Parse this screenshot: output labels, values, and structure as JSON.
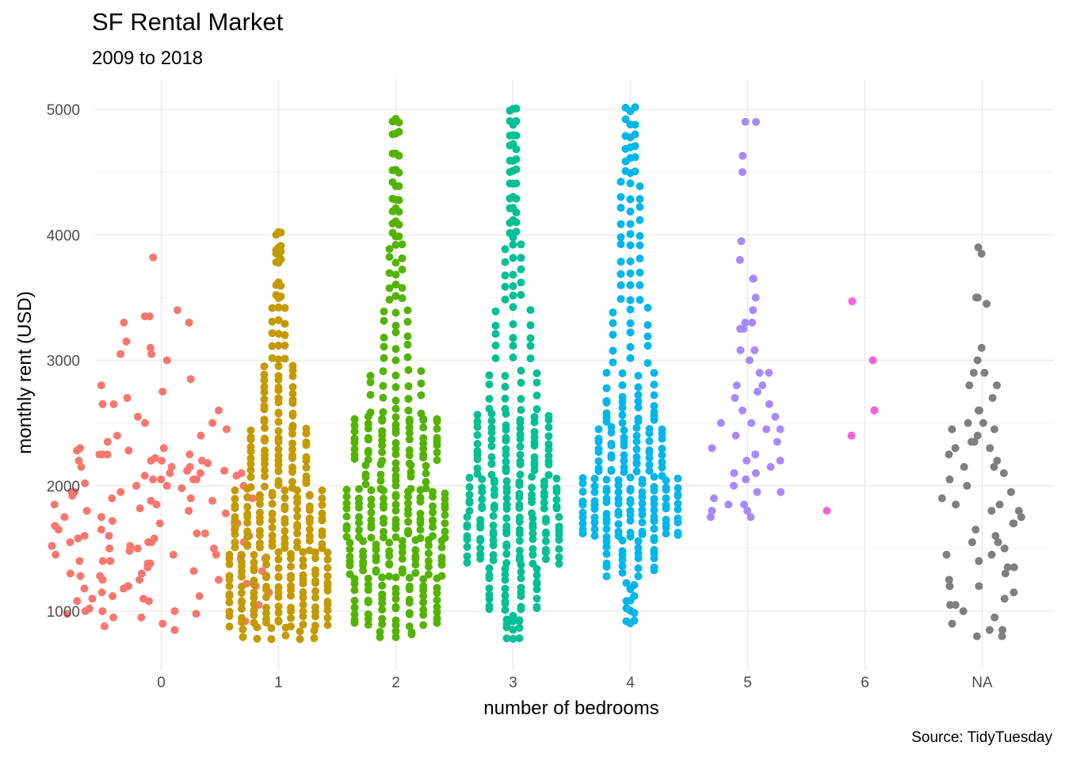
{
  "chart_data": {
    "type": "scatter",
    "subtype": "beeswarm",
    "title": "SF Rental Market",
    "subtitle": "2009 to 2018",
    "caption": "Source: TidyTuesday",
    "xlabel": "number of bedrooms",
    "ylabel": "monthly rent (USD)",
    "categories": [
      "0",
      "1",
      "2",
      "3",
      "4",
      "5",
      "6",
      "NA"
    ],
    "ylim": [
      630,
      5080
    ],
    "yticks": [
      1000,
      2000,
      3000,
      4000,
      5000
    ],
    "grid": true,
    "legend": "none",
    "colors": [
      "#F8766D",
      "#C49A00",
      "#53B400",
      "#00C094",
      "#00B6EB",
      "#A58AFF",
      "#FB61D7",
      "#7F7F7F"
    ],
    "series": [
      {
        "values": [
          850,
          880,
          900,
          920,
          950,
          980,
          1000,
          1000,
          1020,
          1050,
          1080,
          1100,
          1120,
          1150,
          1150,
          1180,
          1200,
          1200,
          1220,
          1250,
          1250,
          1280,
          1300,
          1300,
          1320,
          1350,
          1350,
          1380,
          1400,
          1400,
          1420,
          1450,
          1450,
          1480,
          1500,
          1500,
          1520,
          1550,
          1550,
          1580,
          1600,
          1600,
          1620,
          1650,
          1650,
          1680,
          1700,
          1700,
          1720,
          1750,
          1750,
          1780,
          1800,
          1800,
          1820,
          1850,
          1850,
          1880,
          1900,
          1900,
          1920,
          1950,
          1950,
          1980,
          2000,
          2000,
          2020,
          2050,
          2050,
          2080,
          2100,
          2100,
          2120,
          2150,
          2150,
          2180,
          2200,
          2200,
          2220,
          2250,
          2250,
          2280,
          2300,
          2350,
          2400,
          2450,
          2500,
          2550,
          2600,
          2650,
          2700,
          2750,
          2800,
          2850,
          3000,
          3050,
          3100,
          3150,
          3300,
          3350,
          3400,
          3820
        ]
      },
      {
        "values": [
          800,
          850,
          900,
          950,
          1000,
          1050,
          1100,
          1150,
          1200,
          1250,
          1300,
          1350,
          1400,
          1450,
          1500,
          1550,
          1600,
          1650,
          1700,
          1750,
          1800,
          1850,
          1900,
          1950,
          2000,
          2050,
          2100,
          2150,
          2200,
          2250,
          2300,
          2350,
          2400,
          2450,
          2500,
          2550,
          2600,
          2650,
          2700,
          2750,
          2800,
          2850,
          2900,
          2950,
          3000,
          3100,
          3200,
          3300,
          3400,
          3500,
          3600,
          3800,
          3850,
          3900,
          4000
        ]
      },
      {
        "values": [
          800,
          850,
          900,
          950,
          1000,
          1050,
          1100,
          1150,
          1200,
          1250,
          1300,
          1350,
          1400,
          1450,
          1500,
          1550,
          1600,
          1650,
          1700,
          1750,
          1800,
          1850,
          1900,
          1950,
          2000,
          2050,
          2100,
          2150,
          2200,
          2250,
          2300,
          2350,
          2400,
          2450,
          2500,
          2550,
          2600,
          2700,
          2800,
          2900,
          3000,
          3100,
          3200,
          3300,
          3400,
          3500,
          3600,
          3700,
          3800,
          3900,
          4000,
          4100,
          4200,
          4300,
          4400,
          4500,
          4650,
          4800,
          4900
        ]
      },
      {
        "values": [
          800,
          850,
          900,
          950,
          1000,
          1050,
          1100,
          1150,
          1200,
          1250,
          1300,
          1350,
          1400,
          1450,
          1500,
          1550,
          1600,
          1650,
          1700,
          1750,
          1800,
          1850,
          1900,
          1950,
          2000,
          2050,
          2100,
          2150,
          2200,
          2250,
          2300,
          2350,
          2400,
          2450,
          2500,
          2550,
          2600,
          2700,
          2800,
          2900,
          3000,
          3100,
          3200,
          3300,
          3400,
          3500,
          3600,
          3700,
          3800,
          3900,
          4000,
          4100,
          4200,
          4300,
          4400,
          4500,
          4600,
          4700,
          4800,
          4900,
          5000
        ]
      },
      {
        "values": [
          900,
          1000,
          1100,
          1200,
          1300,
          1350,
          1400,
          1450,
          1500,
          1550,
          1600,
          1650,
          1700,
          1750,
          1800,
          1850,
          1900,
          1950,
          2000,
          2050,
          2100,
          2150,
          2200,
          2250,
          2300,
          2350,
          2400,
          2450,
          2500,
          2550,
          2600,
          2650,
          2700,
          2800,
          2900,
          3000,
          3100,
          3200,
          3300,
          3400,
          3500,
          3600,
          3700,
          3800,
          3900,
          4000,
          4100,
          4200,
          4300,
          4400,
          4500,
          4600,
          4700,
          4800,
          4900,
          5000
        ]
      },
      {
        "values": [
          1750,
          1800,
          1850,
          1900,
          1950,
          2000,
          2050,
          2100,
          2150,
          2200,
          2250,
          2300,
          2350,
          2400,
          2450,
          2500,
          2550,
          2600,
          2650,
          2700,
          2750,
          2800,
          2900,
          3000,
          3080,
          3250,
          3300,
          3400,
          3500,
          3650,
          3800,
          3950,
          4500,
          4630,
          4900
        ]
      },
      {
        "values": [
          1800,
          2400,
          2600,
          2600,
          2600,
          2600,
          3000,
          3470
        ]
      },
      {
        "values": [
          800,
          850,
          900,
          950,
          1000,
          1050,
          1100,
          1150,
          1200,
          1250,
          1300,
          1350,
          1400,
          1450,
          1500,
          1550,
          1600,
          1650,
          1700,
          1750,
          1800,
          1850,
          1900,
          1950,
          2000,
          2050,
          2100,
          2150,
          2200,
          2250,
          2300,
          2350,
          2400,
          2450,
          2500,
          2600,
          2700,
          2800,
          2900,
          3000,
          3100,
          3450,
          3500,
          3850,
          3900
        ]
      }
    ]
  }
}
